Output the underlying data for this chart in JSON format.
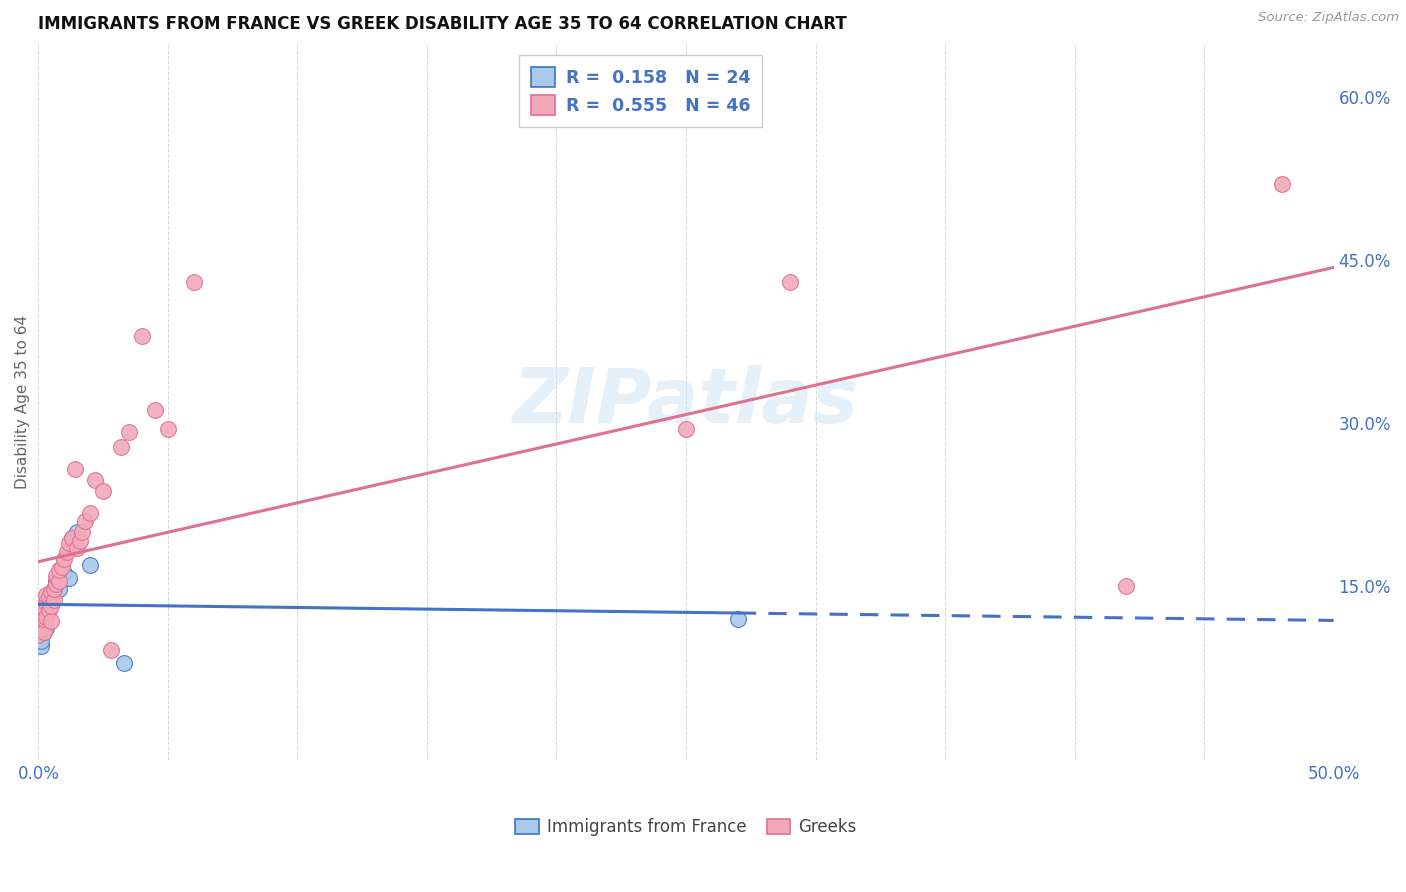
{
  "title": "IMMIGRANTS FROM FRANCE VS GREEK DISABILITY AGE 35 TO 64 CORRELATION CHART",
  "source": "Source: ZipAtlas.com",
  "ylabel": "Disability Age 35 to 64",
  "r_france": 0.158,
  "n_france": 24,
  "r_greek": 0.555,
  "n_greek": 46,
  "xlim": [
    0.0,
    0.5
  ],
  "ylim": [
    -0.01,
    0.65
  ],
  "yticks_right": [
    0.15,
    0.3,
    0.45,
    0.6
  ],
  "ytick_right_labels": [
    "15.0%",
    "30.0%",
    "45.0%",
    "60.0%"
  ],
  "color_france": "#A8CAEA",
  "color_greek": "#F2AABB",
  "color_france_line": "#4472C4",
  "color_greek_line": "#E07090",
  "color_blue_text": "#4472C4",
  "background_color": "#FFFFFF",
  "france_x": [
    0.0,
    0.0,
    0.001,
    0.001,
    0.001,
    0.002,
    0.002,
    0.002,
    0.003,
    0.003,
    0.003,
    0.004,
    0.005,
    0.005,
    0.006,
    0.007,
    0.008,
    0.01,
    0.012,
    0.013,
    0.015,
    0.02,
    0.033,
    0.27
  ],
  "france_y": [
    0.11,
    0.105,
    0.095,
    0.1,
    0.115,
    0.108,
    0.118,
    0.125,
    0.112,
    0.128,
    0.135,
    0.13,
    0.14,
    0.138,
    0.148,
    0.155,
    0.148,
    0.162,
    0.158,
    0.195,
    0.2,
    0.17,
    0.08,
    0.12
  ],
  "greek_x": [
    0.0,
    0.0,
    0.001,
    0.001,
    0.001,
    0.002,
    0.002,
    0.002,
    0.003,
    0.003,
    0.003,
    0.004,
    0.004,
    0.005,
    0.005,
    0.005,
    0.006,
    0.006,
    0.007,
    0.007,
    0.008,
    0.008,
    0.009,
    0.01,
    0.011,
    0.012,
    0.013,
    0.014,
    0.015,
    0.016,
    0.017,
    0.018,
    0.02,
    0.022,
    0.025,
    0.028,
    0.032,
    0.035,
    0.04,
    0.045,
    0.05,
    0.06,
    0.25,
    0.29,
    0.42,
    0.48
  ],
  "greek_y": [
    0.11,
    0.105,
    0.112,
    0.118,
    0.125,
    0.108,
    0.12,
    0.13,
    0.122,
    0.135,
    0.142,
    0.128,
    0.14,
    0.118,
    0.132,
    0.145,
    0.138,
    0.148,
    0.152,
    0.16,
    0.155,
    0.165,
    0.168,
    0.175,
    0.182,
    0.19,
    0.195,
    0.258,
    0.185,
    0.192,
    0.2,
    0.21,
    0.218,
    0.248,
    0.238,
    0.092,
    0.278,
    0.292,
    0.38,
    0.312,
    0.295,
    0.43,
    0.295,
    0.43,
    0.15,
    0.52
  ],
  "watermark": "ZIPatlas",
  "dot_size": 130,
  "legend_text_color": "#000000"
}
